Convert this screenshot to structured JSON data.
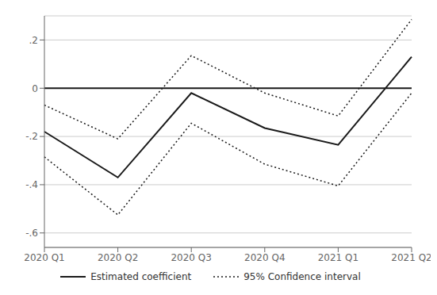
{
  "chart_data": {
    "type": "line",
    "categories": [
      "2020 Q1",
      "2020 Q2",
      "2020 Q3",
      "2020 Q4",
      "2021 Q1",
      "2021 Q2"
    ],
    "series": [
      {
        "name": "Estimated coefficient",
        "color": "#1a1a1a",
        "line_style": "solid",
        "values": [
          -0.18,
          -0.37,
          -0.02,
          -0.165,
          -0.235,
          0.13
        ]
      },
      {
        "name": "95% Confidence interval",
        "color": "#1a1a1a",
        "line_style": "dotted",
        "upper": [
          -0.07,
          -0.21,
          0.135,
          -0.02,
          -0.115,
          0.285
        ],
        "lower": [
          -0.285,
          -0.525,
          -0.145,
          -0.315,
          -0.405,
          -0.02
        ]
      }
    ],
    "reference_line": 0,
    "ylim": [
      -0.66,
      0.3
    ],
    "yticks": [
      {
        "value": -0.6,
        "label": "-.6"
      },
      {
        "value": -0.4,
        "label": "-.4"
      },
      {
        "value": -0.2,
        "label": "-.2"
      },
      0,
      {
        "value": 0.2,
        "label": ".2"
      }
    ],
    "grid": true,
    "legend": "bottom"
  }
}
